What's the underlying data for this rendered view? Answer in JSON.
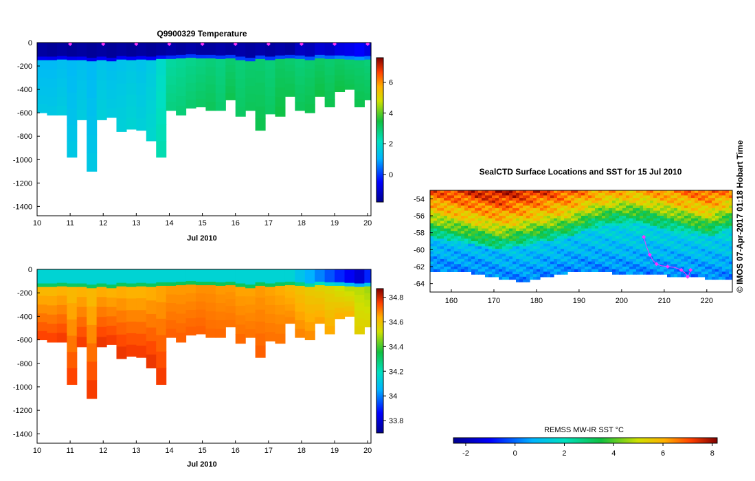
{
  "colors": {
    "jet": [
      "#00008f",
      "#0000ff",
      "#00ffff",
      "#00c040",
      "#c0e000",
      "#ffb000",
      "#ff4000",
      "#800000"
    ],
    "track": "#ff33ff"
  },
  "chart_data": [
    {
      "type": "heatmap",
      "name": "temperature-section",
      "title": "Q9900329  Temperature",
      "xlabel": "Jul 2010",
      "ylabel": "",
      "x_ticks": [
        "10",
        "11",
        "12",
        "13",
        "14",
        "15",
        "16",
        "17",
        "18",
        "19",
        "20"
      ],
      "y_ticks": [
        "0",
        "-200",
        "-400",
        "-600",
        "-800",
        "-1000",
        "-1200",
        "-1400"
      ],
      "xlim": [
        10,
        20.1
      ],
      "ylim": [
        -1480,
        0
      ],
      "colorbar": {
        "min": -1.8,
        "max": 7.6,
        "ticks": [
          "0",
          "2",
          "4",
          "6"
        ]
      },
      "surface_markers": [
        11,
        12,
        13,
        14,
        15,
        16,
        17,
        18,
        19,
        20
      ],
      "profile_days": [
        10,
        10.3,
        10.6,
        10.9,
        11.2,
        11.5,
        11.8,
        12.1,
        12.4,
        12.7,
        13.0,
        13.3,
        13.6,
        13.9,
        14.2,
        14.5,
        14.8,
        15.1,
        15.4,
        15.7,
        16.0,
        16.3,
        16.6,
        16.9,
        17.2,
        17.5,
        17.8,
        18.1,
        18.4,
        18.7,
        19.0,
        19.3,
        19.6,
        19.9
      ],
      "profile_max_depth": [
        600,
        620,
        620,
        980,
        660,
        1100,
        660,
        640,
        760,
        740,
        750,
        840,
        980,
        580,
        620,
        560,
        550,
        580,
        580,
        490,
        630,
        580,
        750,
        610,
        630,
        460,
        580,
        600,
        460,
        550,
        420,
        400,
        550,
        490
      ],
      "mixed_layer_depth": [
        150,
        150,
        145,
        150,
        150,
        160,
        150,
        160,
        145,
        150,
        145,
        150,
        140,
        140,
        135,
        130,
        135,
        135,
        140,
        135,
        150,
        160,
        140,
        150,
        140,
        135,
        140,
        150,
        135,
        140,
        140,
        145,
        150,
        145
      ],
      "surface_values": [
        -1.6,
        -1.7,
        -1.6,
        -1.7,
        -1.6,
        -1.7,
        -1.6,
        -1.7,
        -1.6,
        -1.7,
        -1.6,
        -1.7,
        -1.6,
        -1.5,
        -1.6,
        -1.5,
        -1.6,
        -1.6,
        -1.5,
        -1.6,
        -1.5,
        -1.6,
        -1.5,
        -1.6,
        -1.5,
        -1.6,
        -1.2,
        -1.3,
        -1.0,
        -1.1,
        -0.8,
        -0.7,
        -0.5,
        -0.8
      ],
      "deep_values": [
        1.5,
        1.5,
        1.6,
        1.5,
        1.6,
        1.5,
        1.7,
        1.6,
        1.7,
        1.8,
        1.7,
        1.9,
        2.3,
        2.8,
        2.9,
        3.0,
        3.1,
        3.2,
        3.0,
        3.3,
        3.1,
        3.2,
        3.3,
        3.1,
        3.4,
        3.3,
        3.2,
        3.3,
        3.4,
        3.3,
        3.4,
        3.3,
        3.3,
        3.2
      ],
      "upper_values": [
        1.2,
        1.2,
        1.3,
        1.2,
        1.3,
        1.2,
        1.4,
        1.3,
        1.4,
        1.5,
        1.4,
        1.6,
        2.0,
        2.5,
        2.6,
        2.7,
        2.8,
        2.9,
        2.8,
        3.0,
        2.9,
        3.0,
        3.0,
        2.9,
        3.1,
        3.0,
        2.9,
        3.0,
        3.1,
        3.0,
        3.1,
        3.0,
        3.0,
        2.9
      ]
    },
    {
      "type": "heatmap",
      "name": "salinity-section",
      "title": "",
      "xlabel": "Jul 2010",
      "ylabel": "",
      "x_ticks": [
        "10",
        "11",
        "12",
        "13",
        "14",
        "15",
        "16",
        "17",
        "18",
        "19",
        "20"
      ],
      "y_ticks": [
        "0",
        "-200",
        "-400",
        "-600",
        "-800",
        "-1000",
        "-1200",
        "-1400"
      ],
      "xlim": [
        10,
        20.1
      ],
      "ylim": [
        -1480,
        0
      ],
      "colorbar": {
        "min": 33.7,
        "max": 34.87,
        "ticks": [
          "33.8",
          "34",
          "34.2",
          "34.4",
          "34.6",
          "34.8"
        ]
      },
      "surface_values": [
        34.15,
        34.15,
        34.15,
        34.15,
        34.15,
        34.15,
        34.15,
        34.15,
        34.15,
        34.15,
        34.15,
        34.15,
        34.15,
        34.15,
        34.15,
        34.15,
        34.15,
        34.15,
        34.15,
        34.15,
        34.15,
        34.15,
        34.15,
        34.15,
        34.15,
        34.15,
        34.1,
        34.05,
        34.0,
        33.95,
        33.9,
        33.85,
        33.8,
        33.9
      ],
      "upper_values": [
        34.62,
        34.62,
        34.63,
        34.62,
        34.63,
        34.62,
        34.64,
        34.63,
        34.64,
        34.63,
        34.63,
        34.64,
        34.65,
        34.66,
        34.66,
        34.66,
        34.67,
        34.67,
        34.66,
        34.66,
        34.65,
        34.65,
        34.66,
        34.65,
        34.64,
        34.62,
        34.6,
        34.58,
        34.56,
        34.55,
        34.52,
        34.5,
        34.5,
        34.48
      ],
      "deep_values": [
        34.75,
        34.75,
        34.76,
        34.75,
        34.76,
        34.76,
        34.77,
        34.76,
        34.77,
        34.76,
        34.76,
        34.77,
        34.76,
        34.72,
        34.72,
        34.72,
        34.72,
        34.71,
        34.71,
        34.7,
        34.71,
        34.7,
        34.72,
        34.7,
        34.7,
        34.68,
        34.68,
        34.67,
        34.65,
        34.64,
        34.63,
        34.62,
        34.56,
        34.55
      ]
    },
    {
      "type": "heatmap",
      "name": "sst-map",
      "title": "SealCTD Surface Locations and SST for 15 Jul 2010",
      "xlabel": "",
      "ylabel": "",
      "x_ticks": [
        "160",
        "170",
        "180",
        "190",
        "200",
        "210",
        "220"
      ],
      "y_ticks": [
        "-54",
        "-56",
        "-58",
        "-60",
        "-62",
        "-64"
      ],
      "xlim": [
        155,
        226
      ],
      "ylim": [
        -65,
        -53
      ],
      "colorbar": {
        "label": "REMSS MW-IR SST °C",
        "min": -2.5,
        "max": 8.2,
        "ticks": [
          "-2",
          "0",
          "2",
          "4",
          "6",
          "8"
        ]
      },
      "front_latitude": [
        -57,
        -57.5,
        -58,
        -58.5,
        -58,
        -57.5,
        -57,
        -56,
        -55.5,
        -55.5,
        -56,
        -56.5,
        -57,
        -56
      ],
      "ice_edge_latitude": [
        -62.5,
        -62.6,
        -62.8,
        -63.4,
        -63.8,
        -63.2,
        -62.7,
        -62.5,
        -62.8,
        -62.9,
        -63,
        -63.2,
        -63.4,
        -63.5
      ],
      "track_points": [
        [
          205.2,
          -58.5
        ],
        [
          205.8,
          -59.6
        ],
        [
          206.6,
          -60.6
        ],
        [
          207.4,
          -61.3
        ],
        [
          208.2,
          -61.7
        ],
        [
          209.3,
          -61.9
        ],
        [
          210.8,
          -62.0
        ],
        [
          212.5,
          -62.1
        ],
        [
          214.0,
          -62.4
        ],
        [
          215.0,
          -62.8
        ],
        [
          215.5,
          -63.2
        ],
        [
          215.8,
          -63.0
        ],
        [
          216.2,
          -62.4
        ]
      ]
    }
  ],
  "side_text": "©  IMOS 07-Apr-2017 01:18 Hobart Time"
}
